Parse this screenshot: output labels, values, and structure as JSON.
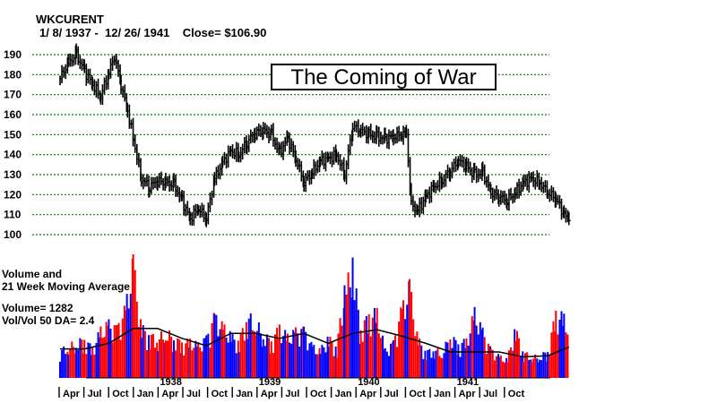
{
  "header": {
    "ticker": "WKCURENT",
    "range_text": "1/ 8/ 1937 -  12/ 26/ 1941    Close= $106.90"
  },
  "annotation": "The Coming of War",
  "volume_panel": {
    "line1": "Volume and",
    "line2": "21 Week Moving Average",
    "volume_text": "Volume= 1282",
    "ratio_text": "Vol/Vol 50 DA= 2.4"
  },
  "colors": {
    "grid": "#008000",
    "price": "#000000",
    "vol_up": "#0000ff",
    "vol_down": "#ff0000",
    "ma": "#000000"
  },
  "chart_data": [
    {
      "type": "line",
      "title": "WKCURENT",
      "xlabel": "",
      "ylabel": "",
      "ylim": [
        100,
        190
      ],
      "yticks": [
        100,
        110,
        120,
        130,
        140,
        150,
        160,
        170,
        180,
        190
      ],
      "grid": true,
      "x_month_labels": [
        "Apr",
        "Jul",
        "Oct",
        "Jan",
        "Apr",
        "Jul",
        "Oct",
        "Jan",
        "Apr",
        "Jul",
        "Oct",
        "Jan",
        "Apr",
        "Jul",
        "Oct",
        "Jan",
        "Apr",
        "Jul",
        "Oct"
      ],
      "x_year_labels": [
        {
          "year": "1938",
          "month_index": 12
        },
        {
          "year": "1939",
          "month_index": 24
        },
        {
          "year": "1940",
          "month_index": 36
        },
        {
          "year": "1941",
          "month_index": 48
        }
      ],
      "x_range_months": [
        0,
        60
      ],
      "series": [
        {
          "monthly_close": [
            {
              "m": 0,
              "v": 178
            },
            {
              "m": 1,
              "v": 186
            },
            {
              "m": 2,
              "v": 190
            },
            {
              "m": 3,
              "v": 182
            },
            {
              "m": 4,
              "v": 175
            },
            {
              "m": 5,
              "v": 169
            },
            {
              "m": 6,
              "v": 181
            },
            {
              "m": 6.7,
              "v": 189
            },
            {
              "m": 7.5,
              "v": 175
            },
            {
              "m": 8.3,
              "v": 162
            },
            {
              "m": 9,
              "v": 148
            },
            {
              "m": 10,
              "v": 128
            },
            {
              "m": 11,
              "v": 124
            },
            {
              "m": 12,
              "v": 127
            },
            {
              "m": 13,
              "v": 126
            },
            {
              "m": 14,
              "v": 125
            },
            {
              "m": 15,
              "v": 117
            },
            {
              "m": 16,
              "v": 108
            },
            {
              "m": 17,
              "v": 113
            },
            {
              "m": 18,
              "v": 108
            },
            {
              "m": 19,
              "v": 128
            },
            {
              "m": 20,
              "v": 136
            },
            {
              "m": 21,
              "v": 142
            },
            {
              "m": 22,
              "v": 140
            },
            {
              "m": 23,
              "v": 146
            },
            {
              "m": 24,
              "v": 151
            },
            {
              "m": 25,
              "v": 152
            },
            {
              "m": 26,
              "v": 150
            },
            {
              "m": 27,
              "v": 141
            },
            {
              "m": 28,
              "v": 148
            },
            {
              "m": 29,
              "v": 138
            },
            {
              "m": 30,
              "v": 126
            },
            {
              "m": 31,
              "v": 131
            },
            {
              "m": 32,
              "v": 137
            },
            {
              "m": 33,
              "v": 138
            },
            {
              "m": 34,
              "v": 140
            },
            {
              "m": 35,
              "v": 130
            },
            {
              "m": 36,
              "v": 154
            },
            {
              "m": 37,
              "v": 152
            },
            {
              "m": 38,
              "v": 150
            },
            {
              "m": 39,
              "v": 149
            },
            {
              "m": 40,
              "v": 148
            },
            {
              "m": 41,
              "v": 149
            },
            {
              "m": 42,
              "v": 150
            },
            {
              "m": 42.6,
              "v": 151
            },
            {
              "m": 43.2,
              "v": 115
            },
            {
              "m": 44,
              "v": 112
            },
            {
              "m": 45,
              "v": 119
            },
            {
              "m": 46,
              "v": 124
            },
            {
              "m": 47,
              "v": 127
            },
            {
              "m": 48,
              "v": 132
            },
            {
              "m": 49,
              "v": 137
            },
            {
              "m": 50,
              "v": 134
            },
            {
              "m": 51,
              "v": 130
            },
            {
              "m": 52,
              "v": 131
            },
            {
              "m": 53,
              "v": 121
            },
            {
              "m": 54,
              "v": 119
            },
            {
              "m": 55,
              "v": 117
            },
            {
              "m": 56,
              "v": 121
            },
            {
              "m": 57,
              "v": 126
            },
            {
              "m": 58,
              "v": 128
            },
            {
              "m": 59,
              "v": 126
            },
            {
              "m": 60,
              "v": 121
            },
            {
              "m": 61,
              "v": 118
            },
            {
              "m": 62,
              "v": 110
            },
            {
              "m": 62.6,
              "v": 107
            }
          ]
        }
      ]
    },
    {
      "type": "bar",
      "title": "Volume and 21 Week Moving Average",
      "ylim": [
        0,
        2000
      ],
      "volume_monthly": [
        {
          "m": 0,
          "v": 480,
          "up": true
        },
        {
          "m": 1,
          "v": 560,
          "up": false
        },
        {
          "m": 2,
          "v": 620,
          "up": true
        },
        {
          "m": 3,
          "v": 700,
          "up": true
        },
        {
          "m": 4,
          "v": 520,
          "up": false
        },
        {
          "m": 5,
          "v": 840,
          "up": false
        },
        {
          "m": 6,
          "v": 950,
          "up": true
        },
        {
          "m": 7,
          "v": 880,
          "up": false
        },
        {
          "m": 8,
          "v": 1200,
          "up": false
        },
        {
          "m": 9,
          "v": 2000,
          "up": false
        },
        {
          "m": 10,
          "v": 900,
          "up": true
        },
        {
          "m": 11,
          "v": 760,
          "up": false
        },
        {
          "m": 12,
          "v": 700,
          "up": true
        },
        {
          "m": 13,
          "v": 820,
          "up": false
        },
        {
          "m": 14,
          "v": 720,
          "up": true
        },
        {
          "m": 15,
          "v": 620,
          "up": false
        },
        {
          "m": 16,
          "v": 650,
          "up": true
        },
        {
          "m": 17,
          "v": 580,
          "up": false
        },
        {
          "m": 18,
          "v": 700,
          "up": false
        },
        {
          "m": 19,
          "v": 1100,
          "up": true
        },
        {
          "m": 20,
          "v": 900,
          "up": true
        },
        {
          "m": 21,
          "v": 760,
          "up": true
        },
        {
          "m": 22,
          "v": 640,
          "up": false
        },
        {
          "m": 23,
          "v": 1100,
          "up": true
        },
        {
          "m": 24,
          "v": 1000,
          "up": true
        },
        {
          "m": 25,
          "v": 780,
          "up": true
        },
        {
          "m": 26,
          "v": 660,
          "up": false
        },
        {
          "m": 27,
          "v": 900,
          "up": false
        },
        {
          "m": 28,
          "v": 720,
          "up": true
        },
        {
          "m": 29,
          "v": 820,
          "up": false
        },
        {
          "m": 30,
          "v": 860,
          "up": true
        },
        {
          "m": 31,
          "v": 560,
          "up": false
        },
        {
          "m": 32,
          "v": 480,
          "up": true
        },
        {
          "m": 33,
          "v": 720,
          "up": true
        },
        {
          "m": 34,
          "v": 560,
          "up": false
        },
        {
          "m": 35,
          "v": 1500,
          "up": true
        },
        {
          "m": 36,
          "v": 1950,
          "up": true
        },
        {
          "m": 37,
          "v": 900,
          "up": true
        },
        {
          "m": 38,
          "v": 1100,
          "up": false
        },
        {
          "m": 39,
          "v": 1150,
          "up": true
        },
        {
          "m": 40,
          "v": 480,
          "up": true
        },
        {
          "m": 41,
          "v": 620,
          "up": false
        },
        {
          "m": 42,
          "v": 1200,
          "up": false
        },
        {
          "m": 43,
          "v": 1600,
          "up": false
        },
        {
          "m": 44,
          "v": 700,
          "up": false
        },
        {
          "m": 45,
          "v": 460,
          "up": true
        },
        {
          "m": 46,
          "v": 520,
          "up": true
        },
        {
          "m": 47,
          "v": 440,
          "up": true
        },
        {
          "m": 48,
          "v": 760,
          "up": false
        },
        {
          "m": 49,
          "v": 600,
          "up": true
        },
        {
          "m": 50,
          "v": 660,
          "up": false
        },
        {
          "m": 51,
          "v": 1150,
          "up": true
        },
        {
          "m": 52,
          "v": 820,
          "up": true
        },
        {
          "m": 53,
          "v": 500,
          "up": false
        },
        {
          "m": 54,
          "v": 380,
          "up": true
        },
        {
          "m": 55,
          "v": 320,
          "up": false
        },
        {
          "m": 56,
          "v": 880,
          "up": true
        },
        {
          "m": 57,
          "v": 460,
          "up": false
        },
        {
          "m": 58,
          "v": 380,
          "up": true
        },
        {
          "m": 59,
          "v": 380,
          "up": true
        },
        {
          "m": 60,
          "v": 480,
          "up": false
        },
        {
          "m": 61,
          "v": 1150,
          "up": false
        },
        {
          "m": 62,
          "v": 1050,
          "up": false
        },
        {
          "m": 62.6,
          "v": 900,
          "up": false
        }
      ],
      "ma_monthly": [
        {
          "m": 0,
          "v": 470
        },
        {
          "m": 3,
          "v": 470
        },
        {
          "m": 6,
          "v": 560
        },
        {
          "m": 9,
          "v": 800
        },
        {
          "m": 12,
          "v": 800
        },
        {
          "m": 15,
          "v": 640
        },
        {
          "m": 18,
          "v": 520
        },
        {
          "m": 21,
          "v": 720
        },
        {
          "m": 24,
          "v": 720
        },
        {
          "m": 27,
          "v": 640
        },
        {
          "m": 30,
          "v": 720
        },
        {
          "m": 33,
          "v": 560
        },
        {
          "m": 36,
          "v": 720
        },
        {
          "m": 39,
          "v": 780
        },
        {
          "m": 42,
          "v": 680
        },
        {
          "m": 45,
          "v": 560
        },
        {
          "m": 48,
          "v": 420
        },
        {
          "m": 51,
          "v": 420
        },
        {
          "m": 54,
          "v": 420
        },
        {
          "m": 57,
          "v": 340
        },
        {
          "m": 60,
          "v": 360
        },
        {
          "m": 62.6,
          "v": 500
        }
      ]
    }
  ]
}
